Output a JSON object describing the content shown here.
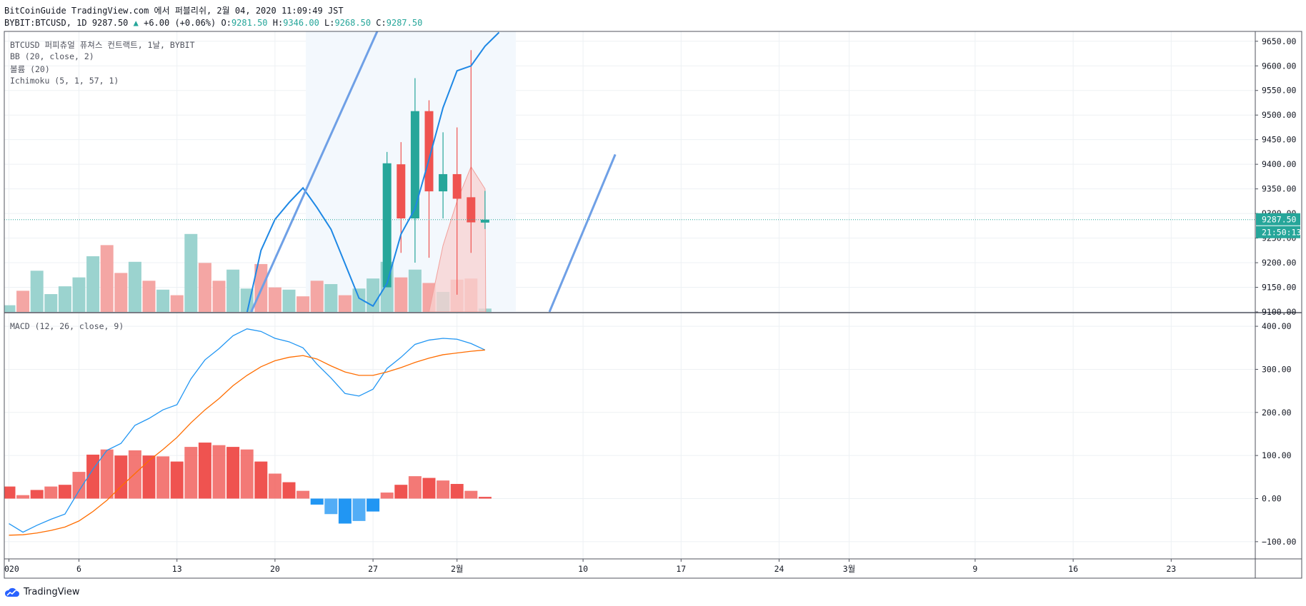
{
  "header": {
    "title": "BitCoinGuide TradingView.com 에서 퍼블리쉬, 2월 04, 2020 11:09:49 JST",
    "symbol": "BYBIT:BTCUSD, 1D",
    "last": "9287.50",
    "change": "+6.00 (+0.06%)",
    "o_label": "O:",
    "o_value": "9281.50",
    "h_label": "H:",
    "h_value": "9346.00",
    "l_label": "L:",
    "l_value": "9268.50",
    "c_label": "C:",
    "c_value": "9287.50"
  },
  "legend": {
    "main": "BTCUSD 퍼피츄얼 퓨쳐스 컨트랙트, 1날, BYBIT",
    "bb": "BB (20, close, 2)",
    "volume": "볼륨 (20)",
    "ichimoku": "Ichimoku (5, 1, 57, 1)",
    "macd": "MACD (12, 26, close, 9)"
  },
  "price_tag": "9287.50",
  "countdown_tag": "21:50:13",
  "footer": {
    "brand": "TradingView"
  },
  "colors": {
    "up": "#26a69a",
    "down": "#ef5350",
    "up_vol": "#9bd3cf",
    "down_vol": "#f4a6a4",
    "bb": "#1e88e5",
    "trendline": "#6fa0e6",
    "macd": "#2196f3",
    "signal": "#ff6d00",
    "hist_pos": "#ef5350",
    "hist_neg": "#2196f3"
  },
  "chart_data": [
    {
      "type": "candlestick",
      "title": "BTCUSD 퍼피츄얼 퓨쳐스 컨트랙트, 1날, BYBIT",
      "ylim": [
        9100,
        9670
      ],
      "yticks": [
        9100,
        9150,
        9200,
        9250,
        9300,
        9350,
        9400,
        9450,
        9500,
        9550,
        9600,
        9650
      ],
      "ytick_labels": [
        "9100.00",
        "9150.00",
        "9200.00",
        "9250.00",
        "9300.00",
        "9350.00",
        "9400.00",
        "9450.00",
        "9500.00",
        "9550.00",
        "9600.00",
        "9650.00"
      ],
      "x_ticks": [
        {
          "day": 0,
          "label": "020"
        },
        {
          "day": 5,
          "label": "6"
        },
        {
          "day": 12,
          "label": "13"
        },
        {
          "day": 19,
          "label": "20"
        },
        {
          "day": 26,
          "label": "27"
        },
        {
          "day": 32,
          "label": "2월"
        },
        {
          "day": 41,
          "label": "10"
        },
        {
          "day": 48,
          "label": "17"
        },
        {
          "day": 55,
          "label": "24"
        },
        {
          "day": 60,
          "label": "3월"
        },
        {
          "day": 69,
          "label": "9"
        },
        {
          "day": 76,
          "label": "16"
        },
        {
          "day": 83,
          "label": "23"
        }
      ],
      "candles": [
        {
          "day": 27,
          "open": 9150,
          "high": 9425,
          "low": 9150,
          "close": 9402
        },
        {
          "day": 28,
          "open": 9400,
          "high": 9445,
          "low": 9220,
          "close": 9290
        },
        {
          "day": 29,
          "open": 9290,
          "high": 9575,
          "low": 9200,
          "close": 9508
        },
        {
          "day": 30,
          "open": 9508,
          "high": 9530,
          "low": 9210,
          "close": 9345
        },
        {
          "day": 31,
          "open": 9345,
          "high": 9465,
          "low": 9290,
          "close": 9380
        },
        {
          "day": 32,
          "open": 9380,
          "high": 9475,
          "low": 9135,
          "close": 9330
        },
        {
          "day": 33,
          "open": 9333,
          "high": 9632,
          "low": 9220,
          "close": 9282
        },
        {
          "day": 34,
          "open": 9281.5,
          "high": 9346,
          "low": 9268.5,
          "close": 9287.5
        }
      ],
      "bb_upper": [
        [
          17,
          9098
        ],
        [
          18,
          9225
        ],
        [
          19,
          9288
        ],
        [
          20,
          9322
        ],
        [
          21,
          9352
        ],
        [
          22,
          9312
        ],
        [
          23,
          9268
        ],
        [
          24,
          9198
        ],
        [
          25,
          9128
        ],
        [
          26,
          9112
        ],
        [
          27,
          9158
        ],
        [
          28,
          9258
        ],
        [
          29,
          9310
        ],
        [
          30,
          9410
        ],
        [
          31,
          9515
        ],
        [
          32,
          9590
        ],
        [
          33,
          9600
        ],
        [
          34,
          9640
        ],
        [
          35,
          9668
        ]
      ],
      "cloud_upper": [
        [
          30,
          9100
        ],
        [
          31,
          9235
        ],
        [
          32,
          9325
        ],
        [
          33,
          9395
        ],
        [
          34,
          9350
        ],
        [
          34.05,
          9100
        ]
      ],
      "trendlines": [
        {
          "from": [
            17.3,
            9100
          ],
          "to": [
            26.3,
            9670
          ]
        },
        {
          "from": [
            38.6,
            9100
          ],
          "to": [
            43.3,
            9420
          ]
        }
      ],
      "last_price": 9287.5
    },
    {
      "type": "bar",
      "title": "볼륨 (20)",
      "colors_by_direction": true,
      "bars": [
        {
          "day": 0,
          "v": 0.12,
          "up": true
        },
        {
          "day": 1,
          "v": 0.38,
          "up": false
        },
        {
          "day": 2,
          "v": 0.74,
          "up": true
        },
        {
          "day": 3,
          "v": 0.32,
          "up": true
        },
        {
          "day": 4,
          "v": 0.46,
          "up": true
        },
        {
          "day": 5,
          "v": 0.62,
          "up": true
        },
        {
          "day": 6,
          "v": 1.0,
          "up": true
        },
        {
          "day": 7,
          "v": 1.2,
          "up": false
        },
        {
          "day": 8,
          "v": 0.7,
          "up": false
        },
        {
          "day": 9,
          "v": 0.9,
          "up": true
        },
        {
          "day": 10,
          "v": 0.56,
          "up": false
        },
        {
          "day": 11,
          "v": 0.4,
          "up": true
        },
        {
          "day": 12,
          "v": 0.3,
          "up": false
        },
        {
          "day": 13,
          "v": 1.4,
          "up": true
        },
        {
          "day": 14,
          "v": 0.88,
          "up": false
        },
        {
          "day": 15,
          "v": 0.56,
          "up": false
        },
        {
          "day": 16,
          "v": 0.76,
          "up": true
        },
        {
          "day": 17,
          "v": 0.42,
          "up": true
        },
        {
          "day": 18,
          "v": 0.86,
          "up": false
        },
        {
          "day": 19,
          "v": 0.44,
          "up": false
        },
        {
          "day": 20,
          "v": 0.4,
          "up": true
        },
        {
          "day": 21,
          "v": 0.28,
          "up": false
        },
        {
          "day": 22,
          "v": 0.56,
          "up": false
        },
        {
          "day": 23,
          "v": 0.5,
          "up": true
        },
        {
          "day": 24,
          "v": 0.3,
          "up": false
        },
        {
          "day": 25,
          "v": 0.42,
          "up": true
        },
        {
          "day": 26,
          "v": 0.6,
          "up": true
        },
        {
          "day": 27,
          "v": 0.9,
          "up": true
        },
        {
          "day": 28,
          "v": 0.62,
          "up": false
        },
        {
          "day": 29,
          "v": 0.76,
          "up": true
        },
        {
          "day": 30,
          "v": 0.52,
          "up": false
        },
        {
          "day": 31,
          "v": 0.36,
          "up": true
        },
        {
          "day": 32,
          "v": 0.58,
          "up": false
        },
        {
          "day": 33,
          "v": 0.6,
          "up": false
        },
        {
          "day": 34,
          "v": 0.06,
          "up": true
        }
      ]
    },
    {
      "type": "line",
      "title": "MACD (12, 26, close, 9)",
      "ylim": [
        -140,
        430
      ],
      "yticks": [
        -100,
        0,
        100,
        200,
        300,
        400
      ],
      "ytick_labels": [
        "−100.00",
        "0.00",
        "100.00",
        "200.00",
        "300.00",
        "400.00"
      ],
      "series": [
        {
          "name": "MACD",
          "role": "macd",
          "points": [
            [
              0,
              -58
            ],
            [
              1,
              -78
            ],
            [
              2,
              -62
            ],
            [
              3,
              -48
            ],
            [
              4,
              -36
            ],
            [
              5,
              18
            ],
            [
              6,
              68
            ],
            [
              7,
              112
            ],
            [
              8,
              128
            ],
            [
              9,
              170
            ],
            [
              10,
              186
            ],
            [
              11,
              206
            ],
            [
              12,
              218
            ],
            [
              13,
              278
            ],
            [
              14,
              322
            ],
            [
              15,
              348
            ],
            [
              16,
              378
            ],
            [
              17,
              394
            ],
            [
              18,
              388
            ],
            [
              19,
              372
            ],
            [
              20,
              364
            ],
            [
              21,
              350
            ],
            [
              22,
              312
            ],
            [
              23,
              280
            ],
            [
              24,
              244
            ],
            [
              25,
              238
            ],
            [
              26,
              254
            ],
            [
              27,
              302
            ],
            [
              28,
              328
            ],
            [
              29,
              358
            ],
            [
              30,
              368
            ],
            [
              31,
              372
            ],
            [
              32,
              370
            ],
            [
              33,
              360
            ],
            [
              34,
              345
            ]
          ]
        },
        {
          "name": "Signal",
          "role": "signal",
          "points": [
            [
              0,
              -85
            ],
            [
              1,
              -84
            ],
            [
              2,
              -80
            ],
            [
              3,
              -74
            ],
            [
              4,
              -66
            ],
            [
              5,
              -52
            ],
            [
              6,
              -30
            ],
            [
              7,
              -4
            ],
            [
              8,
              28
            ],
            [
              9,
              58
            ],
            [
              10,
              88
            ],
            [
              11,
              114
            ],
            [
              12,
              142
            ],
            [
              13,
              176
            ],
            [
              14,
              206
            ],
            [
              15,
              232
            ],
            [
              16,
              262
            ],
            [
              17,
              286
            ],
            [
              18,
              306
            ],
            [
              19,
              320
            ],
            [
              20,
              328
            ],
            [
              21,
              332
            ],
            [
              22,
              324
            ],
            [
              23,
              308
            ],
            [
              24,
              294
            ],
            [
              25,
              286
            ],
            [
              26,
              286
            ],
            [
              27,
              294
            ],
            [
              28,
              304
            ],
            [
              29,
              316
            ],
            [
              30,
              326
            ],
            [
              31,
              334
            ],
            [
              32,
              338
            ],
            [
              33,
              342
            ],
            [
              34,
              345
            ]
          ]
        }
      ],
      "histogram": [
        [
          0,
          28
        ],
        [
          1,
          8
        ],
        [
          2,
          20
        ],
        [
          3,
          28
        ],
        [
          4,
          32
        ],
        [
          5,
          62
        ],
        [
          6,
          102
        ],
        [
          7,
          114
        ],
        [
          8,
          100
        ],
        [
          9,
          112
        ],
        [
          10,
          100
        ],
        [
          11,
          98
        ],
        [
          12,
          86
        ],
        [
          13,
          120
        ],
        [
          14,
          130
        ],
        [
          15,
          124
        ],
        [
          16,
          120
        ],
        [
          17,
          114
        ],
        [
          18,
          86
        ],
        [
          19,
          58
        ],
        [
          20,
          38
        ],
        [
          21,
          18
        ],
        [
          22,
          -14
        ],
        [
          23,
          -36
        ],
        [
          24,
          -58
        ],
        [
          25,
          -52
        ],
        [
          26,
          -30
        ],
        [
          27,
          14
        ],
        [
          28,
          32
        ],
        [
          29,
          52
        ],
        [
          30,
          48
        ],
        [
          31,
          42
        ],
        [
          32,
          34
        ],
        [
          33,
          18
        ],
        [
          34,
          4
        ]
      ]
    }
  ]
}
